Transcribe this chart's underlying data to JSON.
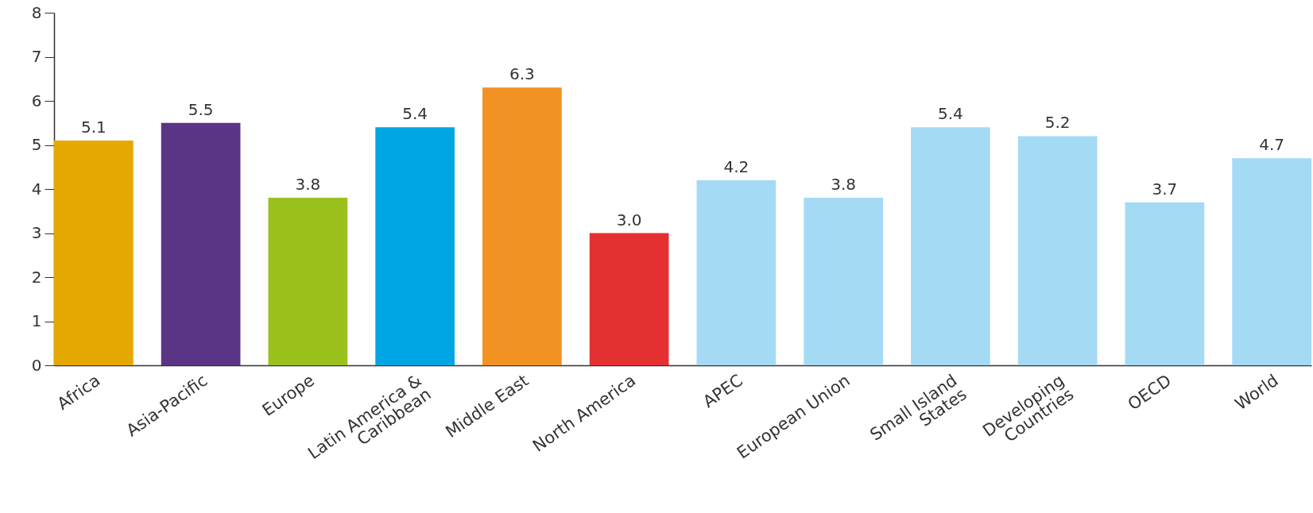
{
  "chart_data": {
    "type": "bar",
    "categories": [
      "Africa",
      "Asia-Pacific",
      "Europe",
      "Latin America &\nCaribbean",
      "Middle East",
      "North America",
      "APEC",
      "European Union",
      "Small Island\nStates",
      "Developing\nCountries",
      "OECD",
      "World"
    ],
    "values": [
      5.1,
      5.5,
      3.8,
      5.4,
      6.3,
      3.0,
      4.2,
      3.8,
      5.4,
      5.2,
      3.7,
      4.7
    ],
    "value_labels": [
      "5.1",
      "5.5",
      "3.8",
      "5.4",
      "6.3",
      "3.0",
      "4.2",
      "3.8",
      "5.4",
      "5.2",
      "3.7",
      "4.7"
    ],
    "colors": [
      "#e5a800",
      "#5b3486",
      "#9bc11f",
      "#00a6e4",
      "#f29222",
      "#e53032",
      "#a5daf5",
      "#a5daf5",
      "#a5daf5",
      "#a5daf5",
      "#a5daf5",
      "#a5daf5"
    ],
    "ylim": [
      0,
      8
    ],
    "yticks": [
      0,
      1,
      2,
      3,
      4,
      5,
      6,
      7,
      8
    ],
    "grid": false
  }
}
